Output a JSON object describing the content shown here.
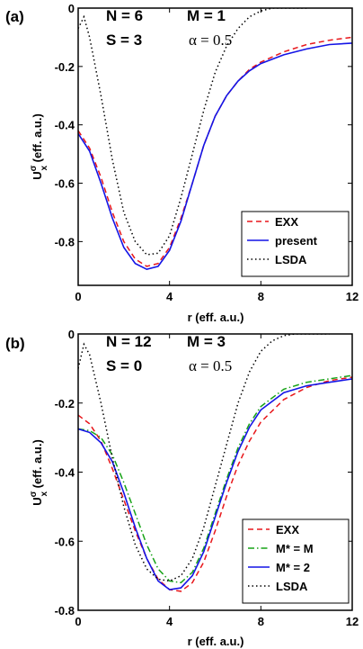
{
  "chart_data": [
    {
      "type": "line",
      "panel_label": "(a)",
      "annotations": [
        "N = 6",
        "M = 1",
        "S = 3",
        "α = 0.5"
      ],
      "xlabel": "r (eff. a.u.)",
      "ylabel": {
        "main": "U",
        "sup": "σ",
        "sub": "x",
        "unit": " (eff. a.u.)"
      },
      "xlim": [
        0,
        12
      ],
      "ylim": [
        -0.95,
        0
      ],
      "xticks": [
        0,
        4,
        8,
        12
      ],
      "yticks": [
        0,
        -0.2,
        -0.4,
        -0.6,
        -0.8
      ],
      "ytick_labels": [
        "0",
        "-0.2",
        "-0.4",
        "-0.6",
        "-0.8"
      ],
      "xtick_labels": [
        "0",
        "4",
        "8",
        "12"
      ],
      "grid": false,
      "legend_position": "bottom-right",
      "series": [
        {
          "name": "EXX",
          "color": "#e8171b",
          "style": "dashed",
          "x": [
            0,
            0.5,
            1,
            1.5,
            2,
            2.5,
            3,
            3.5,
            4,
            4.5,
            5,
            5.5,
            6,
            6.5,
            7,
            7.5,
            8,
            9,
            10,
            11,
            12
          ],
          "y": [
            -0.42,
            -0.48,
            -0.58,
            -0.7,
            -0.8,
            -0.86,
            -0.885,
            -0.875,
            -0.82,
            -0.72,
            -0.6,
            -0.47,
            -0.37,
            -0.3,
            -0.25,
            -0.21,
            -0.185,
            -0.15,
            -0.125,
            -0.11,
            -0.1
          ]
        },
        {
          "name": "present",
          "color": "#1414e6",
          "style": "solid",
          "x": [
            0,
            0.5,
            1,
            1.5,
            2,
            2.5,
            3,
            3.5,
            4,
            4.5,
            5,
            5.5,
            6,
            6.5,
            7,
            7.5,
            8,
            9,
            10,
            11,
            12
          ],
          "y": [
            -0.43,
            -0.49,
            -0.6,
            -0.72,
            -0.82,
            -0.875,
            -0.895,
            -0.885,
            -0.83,
            -0.73,
            -0.6,
            -0.47,
            -0.37,
            -0.3,
            -0.25,
            -0.215,
            -0.19,
            -0.16,
            -0.14,
            -0.125,
            -0.12
          ]
        },
        {
          "name": "LSDA",
          "color": "#000000",
          "style": "dotted",
          "x": [
            0,
            0.25,
            0.5,
            1,
            1.5,
            2,
            2.5,
            3,
            3.5,
            4,
            4.5,
            5,
            5.5,
            6,
            6.5,
            7,
            7.5,
            8,
            8.5,
            9,
            9.5,
            10
          ],
          "y": [
            -0.07,
            -0.03,
            -0.1,
            -0.3,
            -0.52,
            -0.7,
            -0.8,
            -0.845,
            -0.84,
            -0.78,
            -0.65,
            -0.5,
            -0.35,
            -0.22,
            -0.13,
            -0.07,
            -0.03,
            -0.01,
            0,
            0,
            0,
            0
          ]
        }
      ]
    },
    {
      "type": "line",
      "panel_label": "(b)",
      "annotations": [
        "N = 12",
        "M = 3",
        "S = 0",
        "α = 0.5"
      ],
      "xlabel": "r (eff. a.u.)",
      "ylabel": {
        "main": "U",
        "sup": "σ",
        "sub": "x",
        "unit": " (eff. a.u.)"
      },
      "xlim": [
        0,
        12
      ],
      "ylim": [
        -0.8,
        0
      ],
      "xticks": [
        0,
        4,
        8,
        12
      ],
      "yticks": [
        0,
        -0.2,
        -0.4,
        -0.6,
        -0.8
      ],
      "ytick_labels": [
        "0",
        "-0.2",
        "-0.4",
        "-0.6",
        "-0.8"
      ],
      "xtick_labels": [
        "0",
        "4",
        "8",
        "12"
      ],
      "grid": false,
      "legend_position": "bottom-right",
      "series": [
        {
          "name": "EXX",
          "color": "#e8171b",
          "style": "dashed",
          "x": [
            0,
            0.5,
            1,
            1.5,
            2,
            2.5,
            3,
            3.5,
            4,
            4.5,
            5,
            5.5,
            6,
            6.5,
            7,
            7.5,
            8,
            9,
            10,
            11,
            12
          ],
          "y": [
            -0.235,
            -0.26,
            -0.31,
            -0.39,
            -0.48,
            -0.57,
            -0.65,
            -0.71,
            -0.74,
            -0.745,
            -0.72,
            -0.66,
            -0.57,
            -0.47,
            -0.38,
            -0.31,
            -0.255,
            -0.19,
            -0.155,
            -0.135,
            -0.125
          ]
        },
        {
          "name": "M* = M",
          "color": "#17a317",
          "style": "dashdot",
          "x": [
            0,
            0.5,
            1,
            1.5,
            2,
            2.5,
            3,
            3.5,
            4,
            4.5,
            5,
            5.5,
            6,
            6.5,
            7,
            7.5,
            8,
            9,
            10,
            11,
            12
          ],
          "y": [
            -0.275,
            -0.28,
            -0.3,
            -0.35,
            -0.43,
            -0.52,
            -0.61,
            -0.68,
            -0.715,
            -0.72,
            -0.69,
            -0.62,
            -0.52,
            -0.42,
            -0.33,
            -0.26,
            -0.21,
            -0.16,
            -0.14,
            -0.13,
            -0.12
          ]
        },
        {
          "name": "M* = 2",
          "color": "#1414e6",
          "style": "solid",
          "x": [
            0,
            0.5,
            1,
            1.5,
            2,
            2.5,
            3,
            3.5,
            4,
            4.5,
            5,
            5.5,
            6,
            6.5,
            7,
            7.5,
            8,
            9,
            10,
            11,
            12
          ],
          "y": [
            -0.275,
            -0.285,
            -0.315,
            -0.37,
            -0.46,
            -0.56,
            -0.65,
            -0.715,
            -0.74,
            -0.735,
            -0.7,
            -0.63,
            -0.53,
            -0.43,
            -0.34,
            -0.27,
            -0.22,
            -0.17,
            -0.15,
            -0.14,
            -0.13
          ]
        },
        {
          "name": "LSDA",
          "color": "#000000",
          "style": "dotted",
          "x": [
            0,
            0.25,
            0.5,
            1,
            1.5,
            2,
            2.5,
            3,
            3.5,
            4,
            4.5,
            5,
            5.5,
            6,
            6.5,
            7,
            7.5,
            8,
            8.5,
            9,
            9.5,
            10,
            10.5,
            11
          ],
          "y": [
            -0.1,
            -0.03,
            -0.06,
            -0.2,
            -0.36,
            -0.5,
            -0.61,
            -0.68,
            -0.71,
            -0.715,
            -0.7,
            -0.65,
            -0.56,
            -0.44,
            -0.32,
            -0.2,
            -0.11,
            -0.05,
            -0.02,
            -0.005,
            0,
            0,
            0,
            0
          ]
        }
      ]
    }
  ]
}
